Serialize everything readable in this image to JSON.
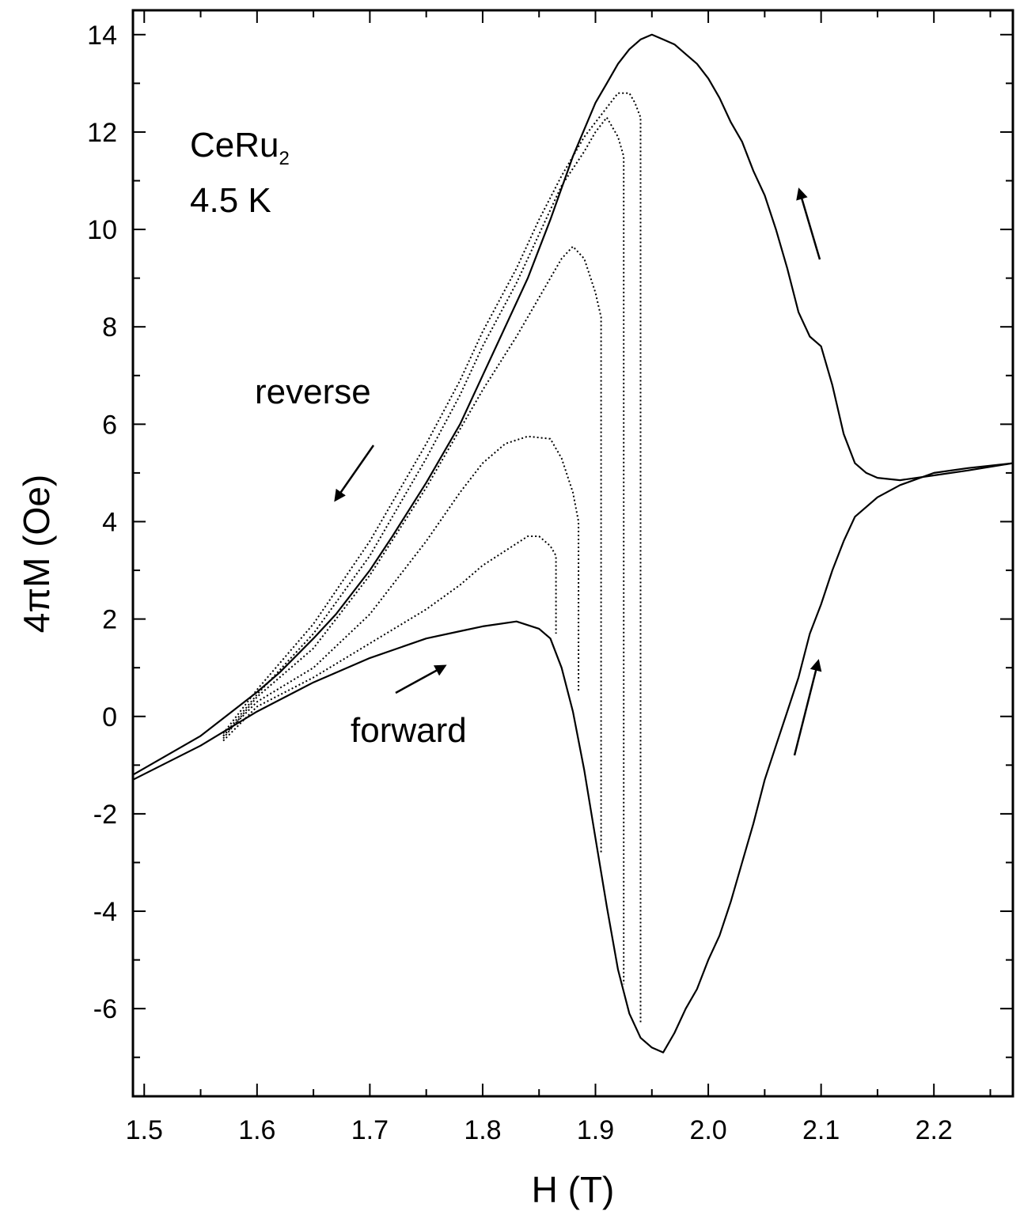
{
  "chart_data": {
    "type": "line",
    "title": "",
    "xlabel": "H (T)",
    "ylabel": "4πM (Oe)",
    "xlim": [
      1.49,
      2.27
    ],
    "ylim": [
      -7.8,
      14.5
    ],
    "x_ticks": [
      1.5,
      1.6,
      1.7,
      1.8,
      1.9,
      2.0,
      2.1,
      2.2
    ],
    "x_tick_labels": [
      "1.5",
      "1.6",
      "1.7",
      "1.8",
      "1.9",
      "2.0",
      "2.1",
      "2.2"
    ],
    "y_ticks": [
      -6,
      -4,
      -2,
      0,
      2,
      4,
      6,
      8,
      10,
      12,
      14
    ],
    "y_tick_labels": [
      "-6",
      "-4",
      "-2",
      "0",
      "2",
      "4",
      "6",
      "8",
      "10",
      "12",
      "14"
    ],
    "grid": false,
    "annotations": {
      "material_main": "CeRu",
      "material_sub": "2",
      "temperature": "4.5 K",
      "reverse": "reverse",
      "forward": "forward"
    },
    "series": [
      {
        "style": "solid",
        "x": [
          1.49,
          1.55,
          1.6,
          1.65,
          1.7,
          1.75,
          1.78,
          1.8,
          1.83,
          1.85,
          1.86,
          1.87,
          1.88,
          1.89,
          1.9,
          1.91,
          1.92,
          1.93,
          1.94,
          1.95,
          1.96,
          1.97,
          1.98,
          1.99,
          2.0,
          2.01,
          2.02,
          2.03,
          2.04,
          2.05,
          2.06,
          2.07,
          2.08,
          2.09,
          2.1,
          2.11,
          2.12,
          2.13,
          2.15,
          2.17,
          2.2,
          2.23,
          2.27
        ],
        "y": [
          -1.3,
          -0.6,
          0.1,
          0.7,
          1.2,
          1.6,
          1.75,
          1.85,
          1.95,
          1.8,
          1.6,
          1.0,
          0.1,
          -1.1,
          -2.5,
          -3.9,
          -5.2,
          -6.1,
          -6.6,
          -6.8,
          -6.9,
          -6.5,
          -6.0,
          -5.6,
          -5.0,
          -4.5,
          -3.8,
          -3.0,
          -2.2,
          -1.3,
          -0.6,
          0.1,
          0.8,
          1.7,
          2.3,
          3.0,
          3.6,
          4.1,
          4.5,
          4.75,
          5.0,
          5.1,
          5.2
        ]
      },
      {
        "style": "solid",
        "x": [
          2.27,
          2.23,
          2.2,
          2.17,
          2.15,
          2.14,
          2.13,
          2.12,
          2.11,
          2.1,
          2.09,
          2.08,
          2.07,
          2.06,
          2.05,
          2.04,
          2.03,
          2.02,
          2.01,
          2.0,
          1.99,
          1.98,
          1.97,
          1.96,
          1.95,
          1.94,
          1.93,
          1.92,
          1.91,
          1.9,
          1.88,
          1.86,
          1.84,
          1.82,
          1.8,
          1.78,
          1.75,
          1.72,
          1.7,
          1.67,
          1.65,
          1.62,
          1.6,
          1.55,
          1.49
        ],
        "y": [
          5.2,
          5.05,
          4.95,
          4.85,
          4.9,
          5.0,
          5.2,
          5.8,
          6.8,
          7.6,
          7.8,
          8.3,
          9.2,
          10.0,
          10.7,
          11.2,
          11.8,
          12.2,
          12.7,
          13.1,
          13.4,
          13.6,
          13.8,
          13.9,
          14.0,
          13.9,
          13.7,
          13.4,
          13.0,
          12.6,
          11.5,
          10.2,
          9.0,
          8.0,
          7.0,
          6.0,
          4.8,
          3.7,
          3.0,
          2.1,
          1.6,
          0.9,
          0.5,
          -0.4,
          -1.2
        ]
      },
      {
        "style": "dotted",
        "x": [
          1.57,
          1.6,
          1.65,
          1.7,
          1.75,
          1.78,
          1.8,
          1.82,
          1.84,
          1.85,
          1.86,
          1.865,
          1.865
        ],
        "y": [
          -0.5,
          0.2,
          0.8,
          1.5,
          2.2,
          2.7,
          3.1,
          3.4,
          3.7,
          3.7,
          3.5,
          3.3,
          1.7
        ]
      },
      {
        "style": "dotted",
        "x": [
          1.57,
          1.6,
          1.65,
          1.7,
          1.75,
          1.78,
          1.8,
          1.82,
          1.84,
          1.86,
          1.87,
          1.88,
          1.885,
          1.885
        ],
        "y": [
          -0.4,
          0.3,
          1.0,
          2.1,
          3.6,
          4.6,
          5.2,
          5.6,
          5.75,
          5.7,
          5.3,
          4.6,
          4.0,
          0.5
        ]
      },
      {
        "style": "dotted",
        "x": [
          1.57,
          1.6,
          1.65,
          1.7,
          1.75,
          1.78,
          1.8,
          1.83,
          1.85,
          1.87,
          1.88,
          1.89,
          1.9,
          1.905,
          1.905
        ],
        "y": [
          -0.45,
          0.4,
          1.4,
          2.9,
          4.7,
          5.9,
          6.7,
          7.8,
          8.6,
          9.4,
          9.65,
          9.4,
          8.7,
          8.2,
          -2.8
        ]
      },
      {
        "style": "dotted",
        "x": [
          1.57,
          1.6,
          1.65,
          1.7,
          1.75,
          1.78,
          1.8,
          1.83,
          1.85,
          1.87,
          1.89,
          1.9,
          1.91,
          1.92,
          1.925,
          1.925
        ],
        "y": [
          -0.4,
          0.45,
          1.7,
          3.3,
          5.3,
          6.6,
          7.6,
          8.9,
          9.9,
          10.9,
          11.6,
          12.0,
          12.3,
          11.9,
          11.5,
          -5.5
        ]
      },
      {
        "style": "dotted",
        "x": [
          1.57,
          1.6,
          1.65,
          1.7,
          1.75,
          1.78,
          1.8,
          1.83,
          1.85,
          1.87,
          1.89,
          1.91,
          1.92,
          1.93,
          1.935,
          1.94,
          1.94
        ],
        "y": [
          -0.35,
          0.55,
          1.9,
          3.6,
          5.6,
          6.9,
          7.9,
          9.2,
          10.2,
          11.1,
          11.9,
          12.5,
          12.8,
          12.8,
          12.6,
          12.3,
          -6.3
        ]
      }
    ]
  }
}
